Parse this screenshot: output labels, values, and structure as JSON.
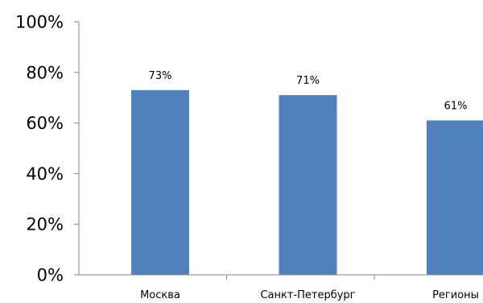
{
  "chart_data": {
    "type": "bar",
    "categories": [
      "Москва",
      "Санкт-Петербург",
      "Регионы"
    ],
    "values": [
      73,
      71,
      61
    ],
    "data_labels": [
      "73%",
      "71%",
      "61%"
    ],
    "yticks": [
      "0%",
      "20%",
      "40%",
      "60%",
      "80%",
      "100%"
    ],
    "ylim": [
      0,
      100
    ],
    "grid": false,
    "bar_color": "#4F81BD",
    "axis_color": "#868686"
  }
}
